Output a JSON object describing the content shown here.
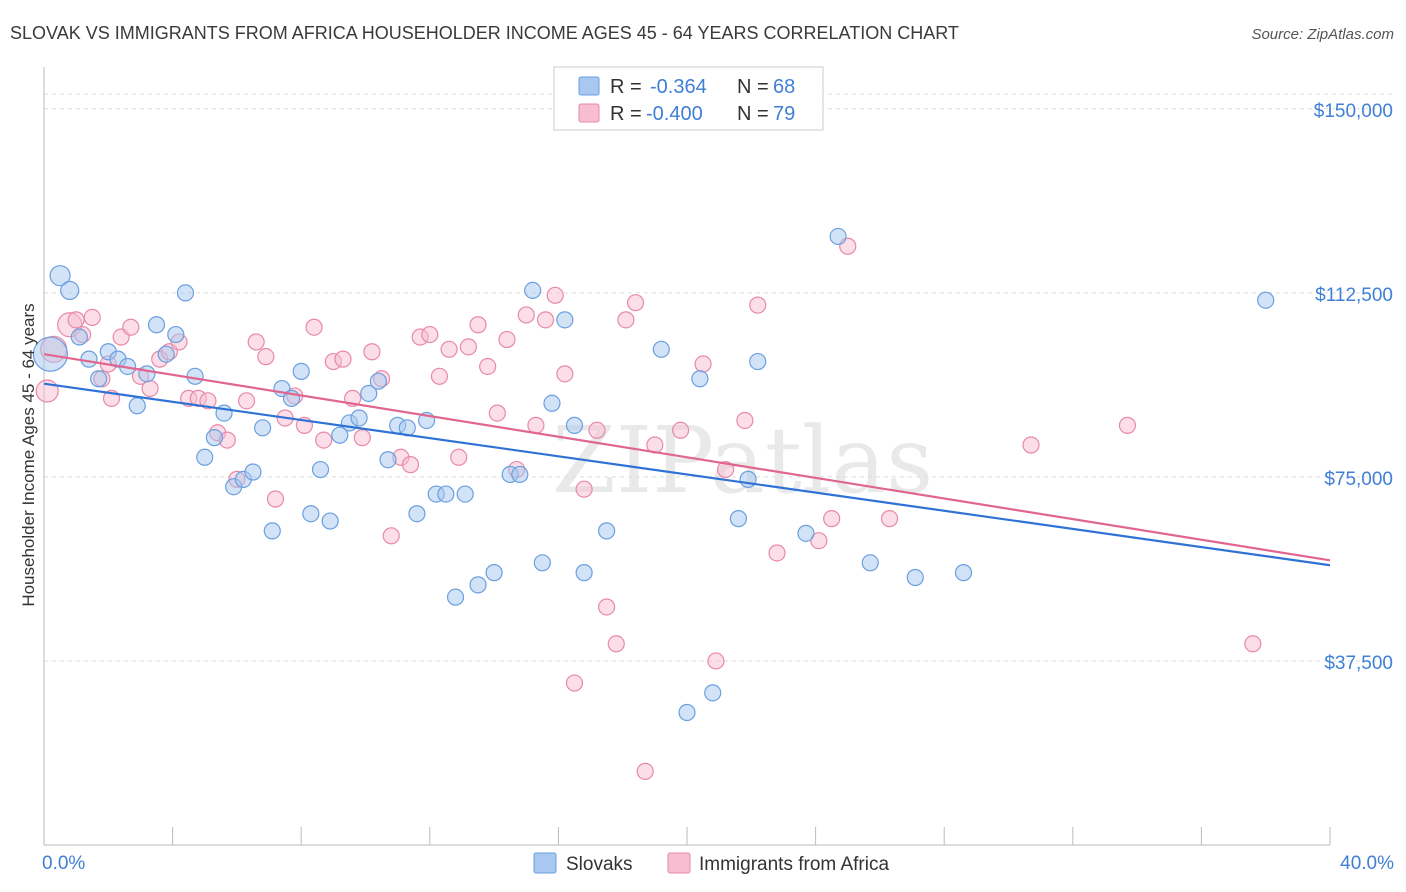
{
  "chart_data": {
    "type": "scatter",
    "title": "SLOVAK VS IMMIGRANTS FROM AFRICA HOUSEHOLDER INCOME AGES 45 - 64 YEARS CORRELATION CHART",
    "source": "Source: ZipAtlas.com",
    "ylabel": "Householder Income Ages 45 - 64 years",
    "xlabel": "",
    "xlim": [
      0,
      40
    ],
    "ylim": [
      0,
      157500
    ],
    "x_tick_labels": {
      "left": "0.0%",
      "right": "40.0%"
    },
    "y_ticks": [
      {
        "value": 37500,
        "label": "$37,500"
      },
      {
        "value": 75000,
        "label": "$75,000"
      },
      {
        "value": 112500,
        "label": "$112,500"
      },
      {
        "value": 150000,
        "label": "$150,000"
      }
    ],
    "watermark": "ZIPatlas",
    "colors": {
      "slovaks_fill": "#a8c8f0",
      "slovaks_stroke": "#6a9fe0",
      "slovaks_line": "#2f72d6",
      "africa_fill": "#f7bdd0",
      "africa_stroke": "#e889a8",
      "africa_line": "#e0668f",
      "tick_text": "#3f7fd6",
      "grid": "#dddddd"
    },
    "legend": {
      "slovaks": {
        "r_label": "R = ",
        "r_value": "-0.364",
        "n_label": "N = ",
        "n_value": "68"
      },
      "africa": {
        "r_label": "R = ",
        "r_value": "-0.400",
        "n_label": "N = ",
        "n_value": "79"
      }
    },
    "series": [
      {
        "name": "Slovaks",
        "trend": {
          "x0": 0,
          "y0": 94000,
          "x1": 40,
          "y1": 57000
        },
        "points": [
          [
            0.2,
            100000,
            34
          ],
          [
            0.5,
            116000,
            20
          ],
          [
            0.8,
            113000,
            18
          ],
          [
            1.1,
            103500,
            16
          ],
          [
            1.4,
            99000,
            16
          ],
          [
            1.7,
            95000,
            16
          ],
          [
            2.0,
            100500,
            16
          ],
          [
            2.3,
            99000,
            16
          ],
          [
            2.6,
            97500,
            16
          ],
          [
            2.9,
            89500,
            16
          ],
          [
            3.2,
            96000,
            16
          ],
          [
            3.5,
            106000,
            16
          ],
          [
            3.8,
            100000,
            16
          ],
          [
            4.1,
            104000,
            16
          ],
          [
            4.4,
            112500,
            16
          ],
          [
            4.7,
            95500,
            16
          ],
          [
            5.0,
            79000,
            16
          ],
          [
            5.3,
            83000,
            16
          ],
          [
            5.6,
            88000,
            16
          ],
          [
            5.9,
            73000,
            16
          ],
          [
            6.2,
            74500,
            16
          ],
          [
            6.5,
            76000,
            16
          ],
          [
            6.8,
            85000,
            16
          ],
          [
            7.1,
            64000,
            16
          ],
          [
            7.4,
            93000,
            16
          ],
          [
            7.7,
            91000,
            16
          ],
          [
            8.0,
            96500,
            16
          ],
          [
            8.3,
            67500,
            16
          ],
          [
            8.6,
            76500,
            16
          ],
          [
            8.9,
            66000,
            16
          ],
          [
            9.2,
            83500,
            16
          ],
          [
            9.5,
            86000,
            16
          ],
          [
            9.8,
            87000,
            16
          ],
          [
            10.1,
            92000,
            16
          ],
          [
            10.4,
            94500,
            16
          ],
          [
            10.7,
            78500,
            16
          ],
          [
            11.0,
            85500,
            16
          ],
          [
            11.3,
            85000,
            16
          ],
          [
            11.6,
            67500,
            16
          ],
          [
            11.9,
            86500,
            16
          ],
          [
            12.2,
            71500,
            16
          ],
          [
            12.5,
            71500,
            16
          ],
          [
            12.8,
            50500,
            16
          ],
          [
            13.1,
            71500,
            16
          ],
          [
            13.5,
            53000,
            16
          ],
          [
            14.0,
            55500,
            16
          ],
          [
            14.5,
            75500,
            16
          ],
          [
            14.8,
            75500,
            16
          ],
          [
            15.2,
            113000,
            16
          ],
          [
            15.5,
            57500,
            16
          ],
          [
            15.8,
            90000,
            16
          ],
          [
            16.2,
            107000,
            16
          ],
          [
            16.5,
            85500,
            16
          ],
          [
            16.8,
            55500,
            16
          ],
          [
            17.5,
            64000,
            16
          ],
          [
            19.2,
            101000,
            16
          ],
          [
            20.0,
            27000,
            16
          ],
          [
            20.4,
            95000,
            16
          ],
          [
            20.8,
            31000,
            16
          ],
          [
            21.6,
            66500,
            16
          ],
          [
            21.9,
            74500,
            16
          ],
          [
            22.2,
            98500,
            16
          ],
          [
            23.7,
            63500,
            16
          ],
          [
            24.7,
            124000,
            16
          ],
          [
            25.7,
            57500,
            16
          ],
          [
            27.1,
            54500,
            16
          ],
          [
            28.6,
            55500,
            16
          ],
          [
            38.0,
            111000,
            16
          ]
        ]
      },
      {
        "name": "Immigrants from Africa",
        "trend": {
          "x0": 0,
          "y0": 100000,
          "x1": 40,
          "y1": 58000
        },
        "points": [
          [
            0.1,
            92500,
            22
          ],
          [
            0.3,
            101000,
            26
          ],
          [
            0.8,
            106000,
            24
          ],
          [
            1.2,
            104000,
            16
          ],
          [
            1.5,
            107500,
            16
          ],
          [
            1.8,
            95000,
            16
          ],
          [
            2.1,
            91000,
            16
          ],
          [
            2.4,
            103500,
            16
          ],
          [
            2.7,
            105500,
            16
          ],
          [
            3.0,
            95500,
            16
          ],
          [
            3.3,
            93000,
            16
          ],
          [
            3.6,
            99000,
            16
          ],
          [
            3.9,
            100500,
            16
          ],
          [
            4.2,
            102500,
            16
          ],
          [
            4.5,
            91000,
            16
          ],
          [
            4.8,
            91000,
            16
          ],
          [
            5.1,
            90500,
            16
          ],
          [
            5.4,
            84000,
            16
          ],
          [
            5.7,
            82500,
            16
          ],
          [
            6.0,
            74500,
            16
          ],
          [
            6.3,
            90500,
            16
          ],
          [
            6.6,
            102500,
            16
          ],
          [
            6.9,
            99500,
            16
          ],
          [
            7.2,
            70500,
            16
          ],
          [
            7.5,
            87000,
            16
          ],
          [
            7.8,
            91500,
            16
          ],
          [
            8.1,
            85500,
            16
          ],
          [
            8.4,
            105500,
            16
          ],
          [
            8.7,
            82500,
            16
          ],
          [
            9.0,
            98500,
            16
          ],
          [
            9.3,
            99000,
            16
          ],
          [
            9.6,
            91000,
            16
          ],
          [
            9.9,
            83000,
            16
          ],
          [
            10.2,
            100500,
            16
          ],
          [
            10.5,
            95000,
            16
          ],
          [
            10.8,
            63000,
            16
          ],
          [
            11.1,
            79000,
            16
          ],
          [
            11.4,
            77500,
            16
          ],
          [
            11.7,
            103500,
            16
          ],
          [
            12.0,
            104000,
            16
          ],
          [
            12.3,
            95500,
            16
          ],
          [
            12.6,
            101000,
            16
          ],
          [
            12.9,
            79000,
            16
          ],
          [
            13.2,
            101500,
            16
          ],
          [
            13.5,
            106000,
            16
          ],
          [
            13.8,
            97500,
            16
          ],
          [
            14.1,
            88000,
            16
          ],
          [
            14.4,
            103000,
            16
          ],
          [
            14.7,
            76500,
            16
          ],
          [
            15.0,
            108000,
            16
          ],
          [
            15.3,
            85500,
            16
          ],
          [
            15.6,
            107000,
            16
          ],
          [
            15.9,
            112000,
            16
          ],
          [
            16.2,
            96000,
            16
          ],
          [
            16.5,
            33000,
            16
          ],
          [
            16.8,
            72500,
            16
          ],
          [
            17.2,
            84500,
            16
          ],
          [
            17.5,
            48500,
            16
          ],
          [
            17.8,
            41000,
            16
          ],
          [
            18.1,
            107000,
            16
          ],
          [
            18.4,
            110500,
            16
          ],
          [
            18.7,
            15000,
            16
          ],
          [
            19.0,
            81500,
            16
          ],
          [
            19.8,
            84500,
            16
          ],
          [
            20.5,
            98000,
            16
          ],
          [
            20.9,
            37500,
            16
          ],
          [
            21.2,
            76500,
            16
          ],
          [
            21.8,
            86500,
            16
          ],
          [
            22.2,
            110000,
            16
          ],
          [
            22.8,
            59500,
            16
          ],
          [
            24.1,
            62000,
            16
          ],
          [
            24.5,
            66500,
            16
          ],
          [
            25.0,
            122000,
            16
          ],
          [
            26.3,
            66500,
            16
          ],
          [
            30.7,
            81500,
            16
          ],
          [
            33.7,
            85500,
            16
          ],
          [
            37.6,
            41000,
            16
          ],
          [
            1.0,
            107000,
            16
          ],
          [
            2.0,
            98000,
            16
          ]
        ]
      }
    ]
  }
}
